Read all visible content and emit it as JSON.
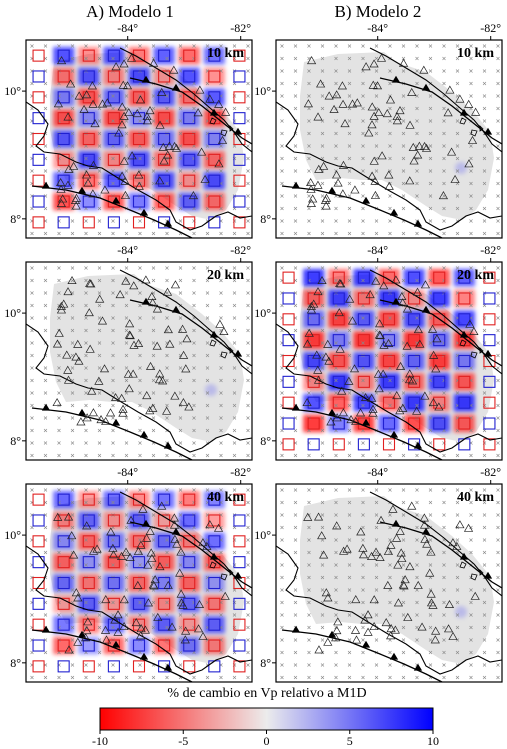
{
  "columns": [
    {
      "title": "A) Modelo 1"
    },
    {
      "title": "B) Modelo 2"
    }
  ],
  "lon_ticks": [
    "-84°",
    "-82°"
  ],
  "lat_ticks": [
    "10°",
    "8°"
  ],
  "map_extent": {
    "lon_min": -85.8,
    "lon_max": -81.8,
    "lat_min": 7.7,
    "lat_max": 10.8
  },
  "panels": [
    {
      "id": "A-10",
      "column": 0,
      "row": 0,
      "depth": "10 km",
      "pattern": "checkerboard",
      "resolved_fraction": 0.8
    },
    {
      "id": "B-10",
      "column": 1,
      "row": 0,
      "depth": "10 km",
      "pattern": "smooth",
      "resolved_fraction": 0.0
    },
    {
      "id": "A-20",
      "column": 0,
      "row": 1,
      "depth": "20 km",
      "pattern": "smooth",
      "resolved_fraction": 0.0
    },
    {
      "id": "B-20",
      "column": 1,
      "row": 1,
      "depth": "20 km",
      "pattern": "checkerboard",
      "resolved_fraction": 0.9
    },
    {
      "id": "A-40",
      "column": 0,
      "row": 2,
      "depth": "40 km",
      "pattern": "checkerboard",
      "resolved_fraction": 0.7
    },
    {
      "id": "B-40",
      "column": 1,
      "row": 2,
      "depth": "40 km",
      "pattern": "smooth",
      "resolved_fraction": 0.0
    }
  ],
  "colorbar": {
    "title": "% de cambio en Vp relativo a M1D",
    "min": -10,
    "max": 10,
    "ticks": [
      "-10",
      "-5",
      "0",
      "5",
      "10"
    ],
    "colors": {
      "negative": "#ff0000",
      "neutral": "#ececec",
      "positive": "#0000ff"
    }
  },
  "symbols": {
    "station": "triangle-outline",
    "grid_node": "cross-x",
    "checker_box": "square-outline",
    "fault": "barbed-line"
  }
}
